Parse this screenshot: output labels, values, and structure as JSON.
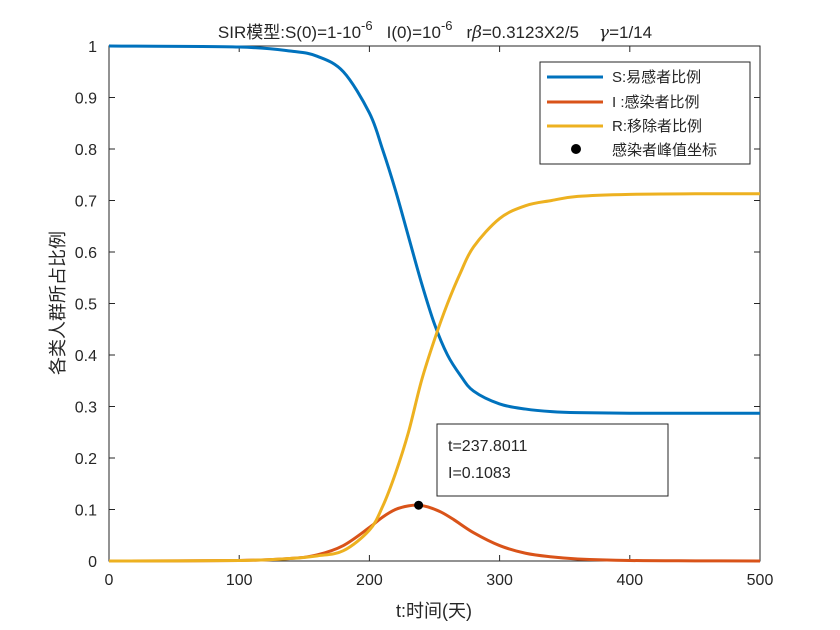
{
  "chart_data": {
    "type": "line",
    "title": {
      "prefix": "SIR模型:S(0)=1-10",
      "exp1": "-6",
      "mid": "I(0)=10",
      "exp2": "-6",
      "rb_pre": "r",
      "beta": "β",
      "rb_post": "=0.3123X2/5",
      "gamma": "γ",
      "gamma_post": "=1/14"
    },
    "xlabel": "t:时间(天)",
    "ylabel": "各类人群所占比例",
    "xlim": [
      0,
      500
    ],
    "ylim": [
      0,
      1
    ],
    "xticks": [
      0,
      100,
      200,
      300,
      400,
      500
    ],
    "yticks": [
      0,
      0.1,
      0.2,
      0.3,
      0.4,
      0.5,
      0.6,
      0.7,
      0.8,
      0.9,
      1
    ],
    "grid": false,
    "legend_position": "top-right",
    "series": [
      {
        "name": "S:易感者比例",
        "color": "#0072BD",
        "x": [
          0,
          100,
          140,
          160,
          180,
          200,
          210,
          220,
          230,
          240,
          250,
          260,
          270,
          280,
          300,
          320,
          340,
          360,
          400,
          450,
          500
        ],
        "y": [
          1.0,
          0.998,
          0.99,
          0.98,
          0.95,
          0.87,
          0.8,
          0.72,
          0.63,
          0.54,
          0.46,
          0.4,
          0.36,
          0.33,
          0.305,
          0.295,
          0.29,
          0.288,
          0.287,
          0.287,
          0.287
        ]
      },
      {
        "name": "I :感染者比例",
        "color": "#D95319",
        "x": [
          0,
          100,
          140,
          160,
          180,
          200,
          210,
          220,
          230,
          237.8,
          245,
          255,
          265,
          280,
          300,
          320,
          340,
          360,
          400,
          450,
          500
        ],
        "y": [
          0,
          0.001,
          0.005,
          0.012,
          0.03,
          0.065,
          0.085,
          0.1,
          0.107,
          0.1083,
          0.105,
          0.095,
          0.08,
          0.055,
          0.03,
          0.015,
          0.008,
          0.004,
          0.001,
          0.0003,
          0.0001
        ]
      },
      {
        "name": "R:移除者比例",
        "color": "#EDB120",
        "x": [
          0,
          100,
          140,
          160,
          180,
          200,
          210,
          220,
          230,
          240,
          250,
          260,
          270,
          280,
          300,
          320,
          340,
          360,
          400,
          450,
          500
        ],
        "y": [
          0,
          0.001,
          0.005,
          0.01,
          0.02,
          0.06,
          0.105,
          0.17,
          0.25,
          0.35,
          0.43,
          0.5,
          0.56,
          0.61,
          0.665,
          0.69,
          0.7,
          0.708,
          0.712,
          0.713,
          0.713
        ]
      }
    ],
    "peak": {
      "name": "感染者峰值坐标",
      "x": 237.8011,
      "y": 0.1083,
      "color": "#000000",
      "line1": "t=237.8011",
      "line2": "I=0.1083"
    }
  }
}
